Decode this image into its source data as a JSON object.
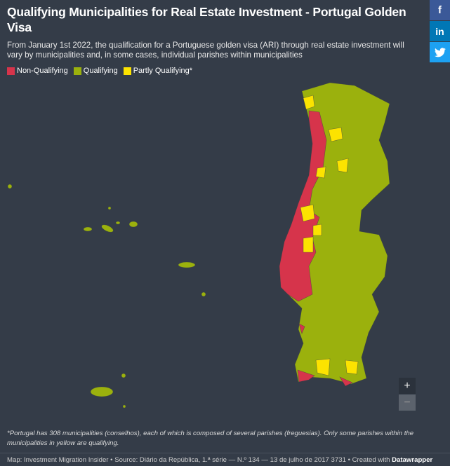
{
  "header": {
    "title": "Qualifying Municipalities for Real Estate Investment - Portugal Golden Visa",
    "subtitle": "From January 1st 2022, the qualification for a Portuguese golden visa (ARI) through real estate investment will vary by municipalities and, in some cases, individual parishes within municipalities"
  },
  "legend": [
    {
      "label": "Non-Qualifying",
      "color": "#d6344b"
    },
    {
      "label": "Qualifying",
      "color": "#9bb10d"
    },
    {
      "label": "Partly Qualifying*",
      "color": "#fce300"
    }
  ],
  "social": {
    "facebook": "f",
    "linkedin": "in"
  },
  "zoom": {
    "in": "+",
    "out": "−"
  },
  "footnote": "*Portugal has 308 municipalities (conselhos), each of which is composed of several parishes (freguesias). Only some parishes within the municipalities in yellow are qualifying.",
  "footer": {
    "source": "Map: Investment Migration Insider • Source: Diário da República, 1.ª série — N.º 134 — 13 de julho de 2017 3731 • Created with",
    "tool": "Datawrapper"
  }
}
